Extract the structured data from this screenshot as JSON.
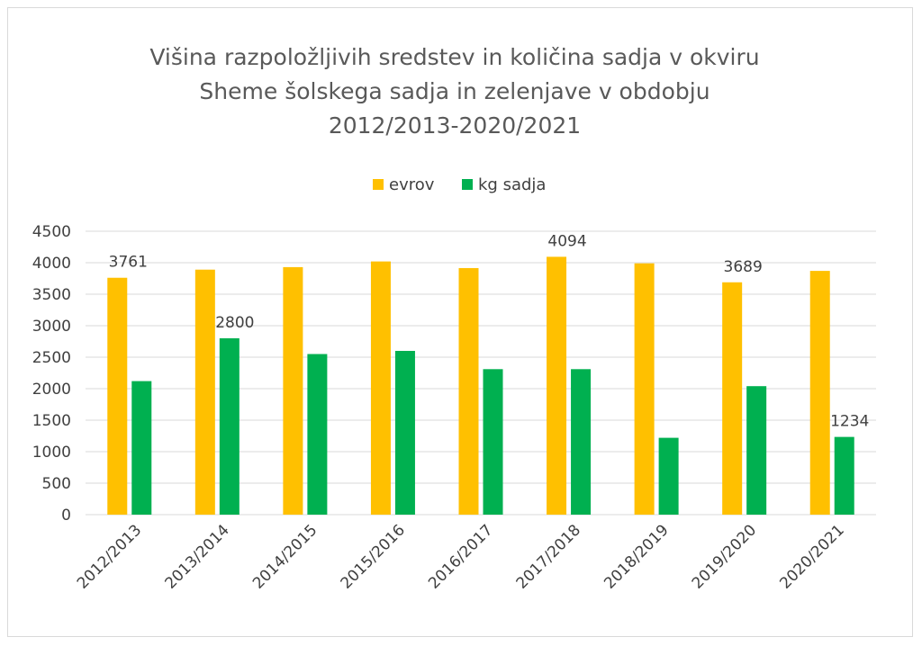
{
  "chart_data": {
    "type": "bar",
    "title_lines": [
      "Višina razpoložljivih sredstev in količina sadja v okviru",
      "Sheme šolskega sadja in zelenjave v obdobju",
      "2012/2013-2020/2021"
    ],
    "categories": [
      "2012/2013",
      "2013/2014",
      "2014/2015",
      "2015/2016",
      "2016/2017",
      "2017/2018",
      "2018/2019",
      "2019/2020",
      "2020/2021"
    ],
    "series": [
      {
        "name": "evrov",
        "color": "#ffc000",
        "values": [
          3761,
          3890,
          3930,
          4020,
          3915,
          4094,
          3990,
          3689,
          3870
        ],
        "labels": [
          "3761",
          "",
          "",
          "",
          "",
          "4094",
          "",
          "3689",
          ""
        ]
      },
      {
        "name": "kg sadja",
        "color": "#00b050",
        "values": [
          2120,
          2800,
          2550,
          2600,
          2310,
          2310,
          1220,
          2040,
          1234
        ],
        "labels": [
          "",
          "2800",
          "",
          "",
          "",
          "",
          "",
          "",
          "1234"
        ]
      }
    ],
    "y_ticks": [
      "0",
      "500",
      "1000",
      "1500",
      "2000",
      "2500",
      "3000",
      "3500",
      "4000",
      "4500"
    ],
    "ylim": [
      0,
      4500
    ],
    "grid": true,
    "legend_position": "top"
  }
}
